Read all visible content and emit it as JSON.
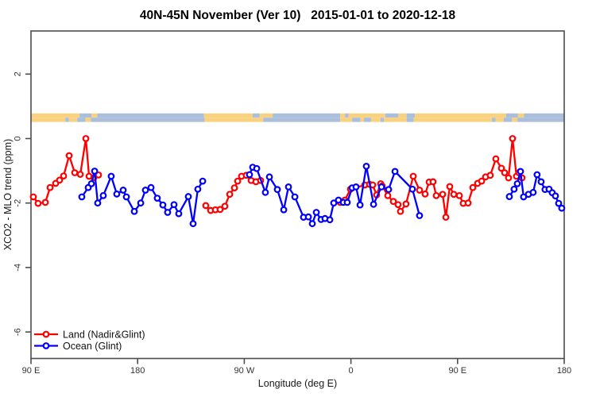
{
  "title": "40N-45N November (Ver 10)   2015-01-01 to 2020-12-18",
  "colors": {
    "land_series": "#ff0000",
    "ocean_series": "#0000ff",
    "map_land": "#fad17f",
    "map_ocean": "#a9bfdc",
    "axis": "#4d4d4d"
  },
  "map_strip": {
    "north_row": [
      [
        90,
        131,
        "land"
      ],
      [
        131,
        141,
        "ocean"
      ],
      [
        141,
        146,
        "land"
      ],
      [
        146,
        236,
        "ocean"
      ],
      [
        236,
        277,
        "land"
      ],
      [
        277,
        283,
        "ocean"
      ],
      [
        283,
        294,
        "land"
      ],
      [
        294,
        351,
        "ocean"
      ],
      [
        351,
        355,
        "land"
      ],
      [
        355,
        358,
        "ocean"
      ],
      [
        358,
        389,
        "land"
      ],
      [
        389,
        400,
        "ocean"
      ],
      [
        400,
        407,
        "land"
      ],
      [
        407,
        414,
        "ocean"
      ],
      [
        414,
        491,
        "land"
      ],
      [
        491,
        501,
        "ocean"
      ],
      [
        501,
        506,
        "land"
      ],
      [
        506,
        540,
        "ocean"
      ]
    ],
    "south_row": [
      [
        90,
        119,
        "land"
      ],
      [
        119,
        122,
        "ocean"
      ],
      [
        122,
        129,
        "land"
      ],
      [
        129,
        136,
        "ocean"
      ],
      [
        136,
        140.5,
        "land"
      ],
      [
        140.5,
        236.5,
        "ocean"
      ],
      [
        236.5,
        286,
        "land"
      ],
      [
        286,
        351,
        "ocean"
      ],
      [
        351,
        361,
        "land"
      ],
      [
        361,
        368,
        "ocean"
      ],
      [
        368,
        371,
        "land"
      ],
      [
        371,
        377,
        "ocean"
      ],
      [
        377,
        385,
        "land"
      ],
      [
        385,
        388,
        "ocean"
      ],
      [
        388,
        407,
        "land"
      ],
      [
        407,
        413,
        "ocean"
      ],
      [
        413,
        479,
        "land"
      ],
      [
        479,
        482,
        "ocean"
      ],
      [
        482,
        489,
        "land"
      ],
      [
        489,
        496,
        "ocean"
      ],
      [
        496,
        500.5,
        "land"
      ],
      [
        500.5,
        540,
        "ocean"
      ]
    ]
  },
  "chart_data": {
    "type": "line",
    "title": "40N-45N November (Ver 10)   2015-01-01 to 2020-12-18",
    "xlabel": "Longitude (deg E)",
    "ylabel": "XCO2 - MLO trend (ppm)",
    "xlim": [
      90,
      540
    ],
    "ylim": [
      -6.9,
      3.3
    ],
    "grid": false,
    "legend_position": "bottom-left",
    "x_ticks": [
      {
        "lon": 90,
        "label": "90 E"
      },
      {
        "lon": 180,
        "label": "180"
      },
      {
        "lon": 270,
        "label": "90 W"
      },
      {
        "lon": 360,
        "label": "0"
      },
      {
        "lon": 450,
        "label": "90 E"
      },
      {
        "lon": 540,
        "label": "180"
      }
    ],
    "y_ticks": [
      {
        "v": 2,
        "label": "2"
      },
      {
        "v": 0,
        "label": "0"
      },
      {
        "v": -2,
        "label": "-2"
      },
      {
        "v": -4,
        "label": "-4"
      },
      {
        "v": -6,
        "label": "-6"
      }
    ],
    "series": [
      {
        "id": "land",
        "name": "Land (Nadir&Glint)",
        "color": "#ff0000",
        "segments": [
          {
            "x": [
              92.0,
              96.0,
              102.1,
              106.1,
              110.8,
              114.1,
              117.5,
              122.2,
              126.9,
              131.6,
              136.3,
              139.0,
              143.0,
              147.0
            ],
            "y": [
              -1.81,
              -2.01,
              -1.98,
              -1.52,
              -1.39,
              -1.29,
              -1.16,
              -0.53,
              -1.06,
              -1.11,
              0.0,
              -1.17,
              -1.21,
              -1.13
            ]
          },
          {
            "x": [
              237.5,
              241.6,
              245.6,
              249.6,
              253.6,
              257.7,
              261.7,
              264.4,
              267.7,
              271.7,
              275.8,
              279.8,
              283.8
            ],
            "y": [
              -2.08,
              -2.23,
              -2.21,
              -2.2,
              -2.1,
              -1.73,
              -1.53,
              -1.32,
              -1.17,
              -1.14,
              -1.3,
              -1.34,
              -1.3
            ]
          },
          {
            "x": [
              350.9,
              354.9,
              359.6,
              371.7,
              375.7,
              378.4,
              381.7,
              385.1,
              386.4,
              391.1,
              395.8,
              399.8,
              401.8,
              406.5,
              412.6,
              417.9,
              422.6,
              426.0,
              429.3,
              432.0,
              437.4,
              440.1,
              443.4,
              446.8,
              451.5,
              454.8,
              458.9,
              462.9,
              466.9,
              470.3,
              473.6,
              477.6,
              482.3,
              487.0,
              489.7,
              493.0,
              496.4,
              499.7,
              501.7,
              504.4
            ],
            "y": [
              -1.98,
              -1.91,
              -1.57,
              -1.44,
              -1.42,
              -1.44,
              -1.75,
              -1.4,
              -1.47,
              -1.77,
              -1.95,
              -2.05,
              -2.26,
              -2.03,
              -1.17,
              -1.6,
              -1.72,
              -1.35,
              -1.34,
              -1.77,
              -1.73,
              -2.44,
              -1.49,
              -1.73,
              -1.77,
              -2.01,
              -2.0,
              -1.52,
              -1.39,
              -1.32,
              -1.19,
              -1.14,
              -0.63,
              -0.92,
              -1.06,
              -1.22,
              0.0,
              -1.17,
              -1.06,
              -1.22
            ]
          }
        ]
      },
      {
        "id": "ocean",
        "name": "Ocean (Glint)",
        "color": "#0000ff",
        "segments": [
          {
            "x": [
              132.9,
              138.3,
              141.0,
              143.7,
              146.3,
              151.0,
              157.7,
              162.4,
              167.8,
              170.5,
              177.2,
              182.6,
              186.6,
              191.3,
              196.6,
              201.3,
              205.3,
              210.7,
              214.7,
              222.8,
              226.8,
              230.8,
              234.9
            ],
            "y": [
              -1.81,
              -1.52,
              -1.4,
              -1.01,
              -2.0,
              -1.77,
              -1.17,
              -1.72,
              -1.6,
              -1.81,
              -2.26,
              -2.0,
              -1.6,
              -1.52,
              -1.85,
              -2.06,
              -2.29,
              -2.05,
              -2.33,
              -1.8,
              -2.64,
              -1.57,
              -1.32
            ]
          },
          {
            "x": [
              274.4,
              277.1,
              280.5,
              287.8,
              291.2,
              297.9,
              303.3,
              307.3,
              312.7,
              320.0,
              324.1,
              327.4,
              330.8,
              334.8,
              338.1,
              342.2,
              345.5,
              349.5,
              353.6,
              356.9,
              361.0,
              364.3,
              367.7,
              373.0,
              379.1,
              385.8,
              391.8,
              397.2,
              411.9,
              417.9
            ],
            "y": [
              -1.12,
              -0.89,
              -0.93,
              -1.67,
              -1.19,
              -1.58,
              -2.21,
              -1.5,
              -1.81,
              -2.44,
              -2.43,
              -2.64,
              -2.29,
              -2.51,
              -2.48,
              -2.52,
              -2.0,
              -1.91,
              -1.98,
              -1.98,
              -1.53,
              -1.5,
              -2.06,
              -0.86,
              -2.04,
              -1.5,
              -1.58,
              -1.02,
              -1.57,
              -2.39
            ]
          },
          {
            "x": [
              493.7,
              497.7,
              500.4,
              503.1,
              505.7,
              509.8,
              513.8,
              517.1,
              520.5,
              523.8,
              527.2,
              529.9,
              532.6,
              535.3,
              537.9
            ],
            "y": [
              -1.8,
              -1.57,
              -1.4,
              -1.02,
              -1.81,
              -1.73,
              -1.67,
              -1.12,
              -1.34,
              -1.58,
              -1.57,
              -1.68,
              -1.78,
              -2.01,
              -2.16
            ]
          }
        ]
      }
    ]
  }
}
